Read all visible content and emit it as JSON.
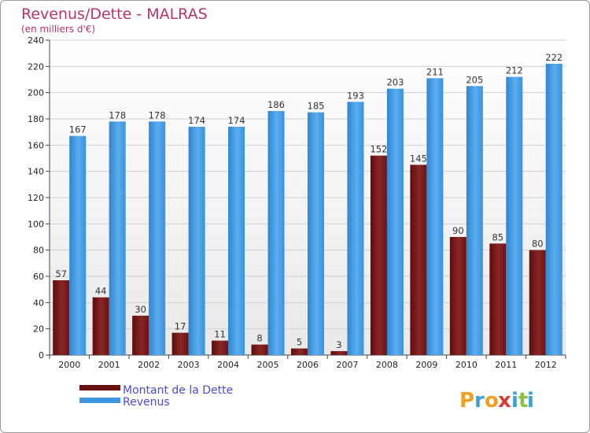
{
  "chart_data": {
    "type": "bar",
    "title": "Revenus/Dette - MALRAS",
    "subtitle": "(en milliers d'€)",
    "categories": [
      "2000",
      "2001",
      "2002",
      "2003",
      "2004",
      "2005",
      "2006",
      "2007",
      "2008",
      "2009",
      "2010",
      "2011",
      "2012"
    ],
    "series": [
      {
        "name": "Montant de la Dette",
        "color": "#7a1a1a",
        "values": [
          57,
          44,
          30,
          17,
          11,
          8,
          5,
          3,
          152,
          145,
          90,
          85,
          80
        ]
      },
      {
        "name": "Revenus",
        "color": "#3f97e0",
        "values": [
          167,
          178,
          178,
          174,
          174,
          186,
          185,
          193,
          203,
          211,
          205,
          212,
          222
        ]
      }
    ],
    "ylim": [
      0,
      240
    ],
    "yticks": [
      0,
      20,
      40,
      60,
      80,
      100,
      120,
      140,
      160,
      180,
      200,
      220,
      240
    ],
    "grid": true,
    "legend_position": "bottom-left"
  },
  "logo": {
    "letters": [
      "P",
      "r",
      "o",
      "x",
      "i",
      "t",
      "i"
    ],
    "colors": [
      "#f0a020",
      "#3aa0d8",
      "#f0a020",
      "#d83a3a",
      "#3aa0d8",
      "#8cc040",
      "#3aa0d8"
    ]
  }
}
